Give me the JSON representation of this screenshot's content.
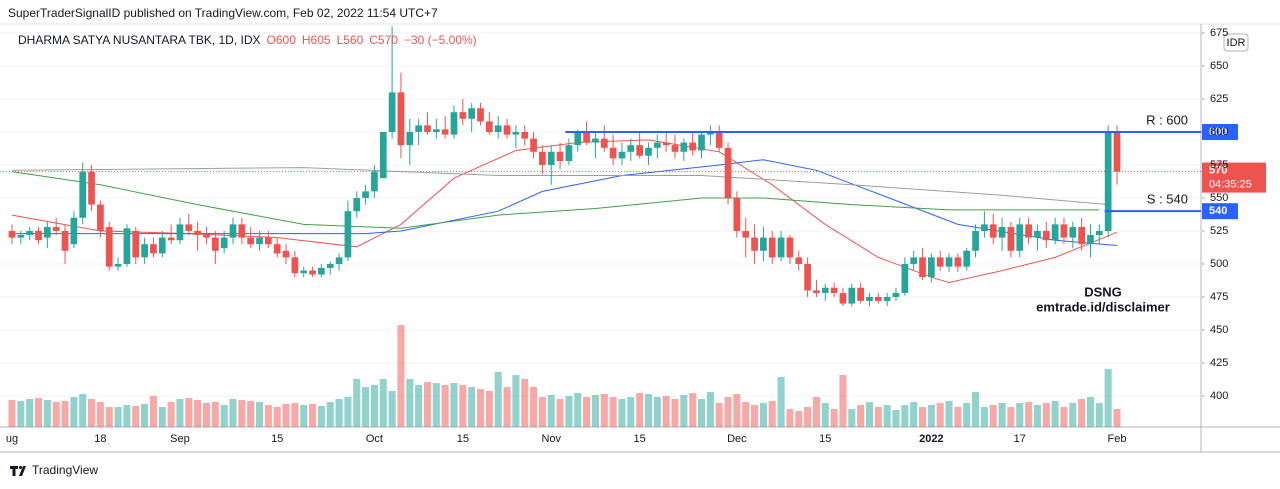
{
  "header": "SuperTraderSignalID published on TradingView.com, Feb 02, 2022 11:54 UTC+7",
  "footer": "TradingView",
  "chart_data": {
    "type": "candlestick",
    "legend": {
      "symbol": "DHARMA SATYA NUSANTARA TBK, 1D, IDX",
      "open": "O600",
      "high": "H605",
      "low": "L560",
      "close": "C570",
      "change": "−30 (−5.00%)"
    },
    "currency": "IDR",
    "countdown": "04:35:25",
    "up_color": "#26a69a",
    "down_color": "#ef5350",
    "ylim": [
      376.5,
      681.8
    ],
    "yticks": [
      400,
      425,
      450,
      475,
      500,
      525,
      550,
      575,
      600,
      625,
      650,
      675
    ],
    "grid": true,
    "categories": [
      "ug",
      null,
      null,
      null,
      null,
      null,
      null,
      null,
      null,
      null,
      "18",
      null,
      null,
      null,
      null,
      null,
      null,
      null,
      null,
      "Sep",
      null,
      null,
      null,
      null,
      null,
      null,
      null,
      null,
      null,
      null,
      "15",
      null,
      null,
      null,
      null,
      null,
      null,
      null,
      null,
      null,
      null,
      "Oct",
      null,
      null,
      null,
      null,
      null,
      null,
      null,
      null,
      null,
      "15",
      null,
      null,
      null,
      null,
      null,
      null,
      null,
      null,
      null,
      "Nov",
      null,
      null,
      null,
      null,
      null,
      null,
      null,
      null,
      null,
      "15",
      null,
      null,
      null,
      null,
      null,
      null,
      null,
      null,
      null,
      null,
      "Dec",
      null,
      null,
      null,
      null,
      null,
      null,
      null,
      null,
      null,
      "15",
      null,
      null,
      null,
      null,
      null,
      null,
      null,
      null,
      null,
      null,
      null,
      "2022",
      null,
      null,
      null,
      null,
      null,
      null,
      null,
      null,
      null,
      "17",
      null,
      null,
      null,
      null,
      null,
      null,
      null,
      null,
      null,
      null,
      "Feb"
    ],
    "open": [
      525,
      520,
      522,
      525,
      520,
      528,
      525,
      515,
      535,
      570,
      545,
      528,
      498,
      500,
      525,
      505,
      515,
      508,
      520,
      518,
      530,
      525,
      522,
      520,
      512,
      520,
      530,
      520,
      515,
      520,
      515,
      510,
      505,
      493,
      495,
      492,
      497,
      500,
      505,
      540,
      550,
      555,
      565,
      600,
      630,
      590,
      600,
      605,
      600,
      602,
      598,
      615,
      610,
      618,
      608,
      600,
      605,
      598,
      600,
      595,
      585,
      575,
      585,
      578,
      590,
      600,
      592,
      595,
      588,
      580,
      585,
      590,
      582,
      588,
      592,
      590,
      585,
      592,
      586,
      598,
      600,
      588,
      550,
      525,
      520,
      510,
      520,
      505,
      520,
      505,
      500,
      480,
      478,
      482,
      478,
      470,
      482,
      472,
      475,
      472,
      475,
      478,
      500,
      505,
      490,
      505,
      498,
      505,
      498,
      510,
      525,
      530,
      520,
      528,
      510,
      530,
      520,
      525,
      518,
      530,
      520,
      528,
      515,
      522,
      525,
      600
    ],
    "high": [
      530,
      525,
      528,
      528,
      532,
      535,
      530,
      540,
      577,
      575,
      548,
      532,
      505,
      530,
      528,
      520,
      520,
      525,
      530,
      535,
      538,
      532,
      528,
      525,
      525,
      535,
      535,
      528,
      525,
      525,
      520,
      515,
      510,
      498,
      498,
      500,
      502,
      508,
      548,
      555,
      560,
      575,
      600,
      680,
      645,
      610,
      610,
      615,
      610,
      612,
      620,
      625,
      622,
      622,
      615,
      612,
      610,
      605,
      605,
      600,
      590,
      590,
      592,
      595,
      602,
      608,
      600,
      605,
      598,
      592,
      595,
      600,
      592,
      598,
      600,
      598,
      595,
      600,
      600,
      605,
      605,
      592,
      555,
      535,
      530,
      528,
      525,
      525,
      522,
      510,
      505,
      488,
      485,
      486,
      482,
      485,
      486,
      478,
      478,
      478,
      482,
      505,
      510,
      512,
      508,
      510,
      508,
      508,
      512,
      530,
      540,
      538,
      535,
      532,
      535,
      535,
      530,
      532,
      535,
      535,
      532,
      535,
      530,
      530,
      605,
      605
    ],
    "low": [
      515,
      515,
      518,
      515,
      512,
      522,
      500,
      512,
      530,
      540,
      520,
      495,
      495,
      498,
      500,
      500,
      505,
      505,
      515,
      515,
      522,
      510,
      515,
      500,
      508,
      515,
      515,
      512,
      510,
      512,
      505,
      500,
      490,
      490,
      490,
      490,
      492,
      495,
      502,
      535,
      545,
      550,
      565,
      595,
      580,
      575,
      590,
      598,
      595,
      595,
      595,
      605,
      600,
      605,
      598,
      595,
      595,
      588,
      590,
      580,
      568,
      560,
      572,
      575,
      585,
      590,
      580,
      585,
      575,
      575,
      578,
      580,
      575,
      580,
      585,
      580,
      578,
      582,
      580,
      590,
      585,
      545,
      520,
      505,
      500,
      502,
      500,
      502,
      500,
      495,
      475,
      475,
      472,
      475,
      468,
      468,
      470,
      468,
      470,
      468,
      472,
      476,
      495,
      488,
      486,
      495,
      494,
      494,
      495,
      505,
      520,
      515,
      510,
      505,
      505,
      515,
      510,
      512,
      515,
      515,
      512,
      510,
      505,
      515,
      520,
      560
    ],
    "close": [
      520,
      522,
      525,
      518,
      528,
      525,
      510,
      535,
      570,
      545,
      525,
      498,
      500,
      527,
      505,
      515,
      508,
      520,
      518,
      530,
      525,
      522,
      520,
      510,
      520,
      530,
      520,
      515,
      520,
      515,
      508,
      505,
      493,
      495,
      492,
      497,
      500,
      505,
      540,
      550,
      555,
      570,
      600,
      630,
      590,
      600,
      605,
      600,
      602,
      598,
      615,
      610,
      618,
      608,
      600,
      605,
      598,
      600,
      595,
      585,
      575,
      585,
      578,
      590,
      600,
      592,
      595,
      588,
      580,
      585,
      590,
      582,
      588,
      592,
      590,
      585,
      592,
      586,
      598,
      600,
      588,
      550,
      525,
      520,
      510,
      520,
      505,
      520,
      505,
      500,
      480,
      478,
      482,
      478,
      470,
      482,
      472,
      475,
      472,
      475,
      478,
      500,
      505,
      490,
      505,
      498,
      505,
      498,
      510,
      525,
      530,
      520,
      528,
      510,
      530,
      520,
      525,
      518,
      530,
      520,
      528,
      515,
      522,
      525,
      600,
      570
    ],
    "volume": [
      27,
      26,
      28,
      29,
      27,
      25,
      26,
      30,
      33,
      28,
      25,
      20,
      20,
      22,
      21,
      23,
      31,
      20,
      25,
      28,
      29,
      27,
      24,
      25,
      22,
      28,
      27,
      26,
      25,
      22,
      20,
      23,
      24,
      22,
      23,
      21,
      25,
      28,
      30,
      48,
      40,
      42,
      48,
      36,
      102,
      48,
      42,
      45,
      44,
      42,
      44,
      42,
      40,
      38,
      36,
      55,
      40,
      52,
      48,
      40,
      30,
      32,
      28,
      31,
      34,
      30,
      32,
      33,
      30,
      28,
      30,
      34,
      33,
      30,
      31,
      28,
      32,
      34,
      28,
      35,
      24,
      30,
      33,
      25,
      22,
      24,
      26,
      50,
      18,
      16,
      20,
      30,
      24,
      18,
      52,
      18,
      22,
      25,
      20,
      22,
      17,
      22,
      25,
      20,
      22,
      24,
      26,
      20,
      24,
      35,
      20,
      22,
      24,
      20,
      24,
      25,
      22,
      24,
      26,
      20,
      24,
      28,
      30,
      24,
      58,
      18
    ],
    "moving_averages": [
      {
        "color": "#ef5350",
        "x": [
          0,
          10,
          20,
          30,
          39,
          44,
          50,
          57,
          64,
          72,
          80,
          86,
          92,
          98,
          104,
          106,
          112,
          118,
          125
        ],
        "values": [
          537,
          525,
          523,
          520,
          513,
          530,
          565,
          586,
          592,
          594,
          585,
          560,
          530,
          505,
          490,
          486,
          495,
          505,
          524
        ]
      },
      {
        "color": "#2962ff",
        "x": [
          0,
          20,
          40,
          44,
          55,
          60,
          69,
          80,
          85,
          91,
          100,
          107,
          118,
          125
        ],
        "values": [
          523,
          523,
          523,
          525,
          540,
          555,
          567,
          575,
          579,
          571,
          548,
          530,
          518,
          514
        ]
      },
      {
        "color": "#43a047",
        "x": [
          0,
          10,
          21,
          33,
          44,
          55,
          66,
          78,
          85,
          95,
          106,
          123
        ],
        "values": [
          570,
          560,
          545,
          530,
          527,
          537,
          542,
          550,
          550,
          545,
          541,
          541
        ]
      },
      {
        "color": "#9e9e9e",
        "x": [
          0,
          33,
          55,
          78,
          95,
          112,
          124
        ],
        "values": [
          571,
          573,
          567,
          567,
          560,
          552,
          545
        ]
      }
    ],
    "levels": [
      {
        "label": "R : 600",
        "value": 600,
        "from": 63,
        "color": "#2962ff"
      },
      {
        "label": "S : 540",
        "value": 540,
        "from": 124,
        "color": "#2962ff"
      }
    ],
    "annotations": [
      "DSNG",
      "emtrade.id/disclaimer"
    ]
  }
}
